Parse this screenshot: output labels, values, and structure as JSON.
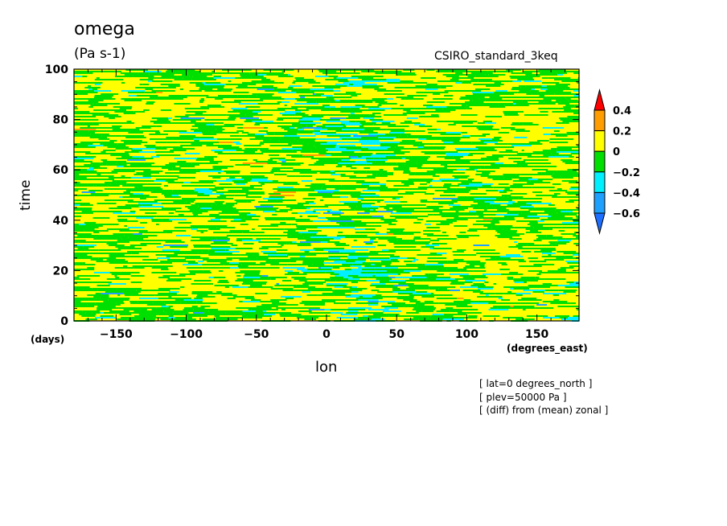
{
  "chart_data": {
    "type": "heatmap",
    "title": "omega",
    "units": "(Pa s-1)",
    "model": "CSIRO_standard_3keq",
    "xlabel": "lon",
    "ylabel": "time",
    "x_unit": "(degrees_east)",
    "y_unit": "(days)",
    "xlim": [
      -180,
      180
    ],
    "ylim": [
      0,
      100
    ],
    "x_ticks": [
      -150,
      -100,
      -50,
      0,
      50,
      100,
      150
    ],
    "y_ticks": [
      0,
      20,
      40,
      60,
      80,
      100
    ],
    "colorbar": {
      "levels": [
        -0.6,
        -0.4,
        -0.2,
        0,
        0.2,
        0.4
      ],
      "labels": [
        "0.4",
        "0.2",
        "0",
        "−0.2",
        "−0.4",
        "−0.6"
      ],
      "bins": [
        {
          "range": "< -0.6",
          "color": "#1e6eff"
        },
        {
          "range": "-0.6 to -0.4",
          "color": "#1ea0ff"
        },
        {
          "range": "-0.4 to -0.2",
          "color": "#00f0ff"
        },
        {
          "range": "-0.2 to 0",
          "color": "#00e000"
        },
        {
          "range": "0 to 0.2",
          "color": "#ffff00"
        },
        {
          "range": "0.2 to 0.4",
          "color": "#ff9d00"
        },
        {
          "range": "> 0.4",
          "color": "#ff0000"
        }
      ]
    },
    "dominant_values": "mostly 0 to 0.2 (yellow) with frequent -0.2 to 0 (green), patches of -0.4 to -0.2 (cyan) concentrated near lon 0-20"
  },
  "annotations": [
    "[ lat=0 degrees_north ]",
    "[ plev=50000 Pa ]",
    "[ (diff) from (mean) zonal ]"
  ]
}
